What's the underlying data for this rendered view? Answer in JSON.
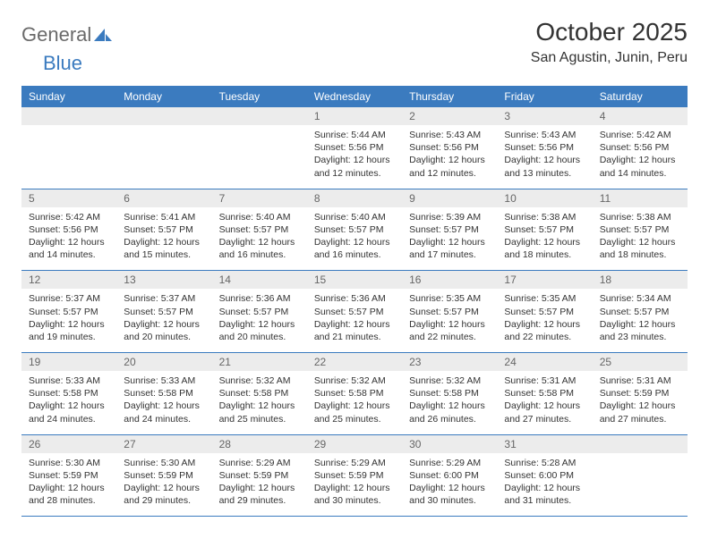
{
  "brand": {
    "word1": "General",
    "word2": "Blue"
  },
  "header": {
    "title": "October 2025",
    "location": "San Agustin, Junin, Peru"
  },
  "colors": {
    "accent": "#3b7bbf",
    "daybar": "#ececec",
    "text": "#333333"
  },
  "weekdays": [
    "Sunday",
    "Monday",
    "Tuesday",
    "Wednesday",
    "Thursday",
    "Friday",
    "Saturday"
  ],
  "weeks": [
    [
      null,
      null,
      null,
      {
        "n": "1",
        "sr": "5:44 AM",
        "ss": "5:56 PM",
        "dl": "12 hours and 12 minutes."
      },
      {
        "n": "2",
        "sr": "5:43 AM",
        "ss": "5:56 PM",
        "dl": "12 hours and 12 minutes."
      },
      {
        "n": "3",
        "sr": "5:43 AM",
        "ss": "5:56 PM",
        "dl": "12 hours and 13 minutes."
      },
      {
        "n": "4",
        "sr": "5:42 AM",
        "ss": "5:56 PM",
        "dl": "12 hours and 14 minutes."
      }
    ],
    [
      {
        "n": "5",
        "sr": "5:42 AM",
        "ss": "5:56 PM",
        "dl": "12 hours and 14 minutes."
      },
      {
        "n": "6",
        "sr": "5:41 AM",
        "ss": "5:57 PM",
        "dl": "12 hours and 15 minutes."
      },
      {
        "n": "7",
        "sr": "5:40 AM",
        "ss": "5:57 PM",
        "dl": "12 hours and 16 minutes."
      },
      {
        "n": "8",
        "sr": "5:40 AM",
        "ss": "5:57 PM",
        "dl": "12 hours and 16 minutes."
      },
      {
        "n": "9",
        "sr": "5:39 AM",
        "ss": "5:57 PM",
        "dl": "12 hours and 17 minutes."
      },
      {
        "n": "10",
        "sr": "5:38 AM",
        "ss": "5:57 PM",
        "dl": "12 hours and 18 minutes."
      },
      {
        "n": "11",
        "sr": "5:38 AM",
        "ss": "5:57 PM",
        "dl": "12 hours and 18 minutes."
      }
    ],
    [
      {
        "n": "12",
        "sr": "5:37 AM",
        "ss": "5:57 PM",
        "dl": "12 hours and 19 minutes."
      },
      {
        "n": "13",
        "sr": "5:37 AM",
        "ss": "5:57 PM",
        "dl": "12 hours and 20 minutes."
      },
      {
        "n": "14",
        "sr": "5:36 AM",
        "ss": "5:57 PM",
        "dl": "12 hours and 20 minutes."
      },
      {
        "n": "15",
        "sr": "5:36 AM",
        "ss": "5:57 PM",
        "dl": "12 hours and 21 minutes."
      },
      {
        "n": "16",
        "sr": "5:35 AM",
        "ss": "5:57 PM",
        "dl": "12 hours and 22 minutes."
      },
      {
        "n": "17",
        "sr": "5:35 AM",
        "ss": "5:57 PM",
        "dl": "12 hours and 22 minutes."
      },
      {
        "n": "18",
        "sr": "5:34 AM",
        "ss": "5:57 PM",
        "dl": "12 hours and 23 minutes."
      }
    ],
    [
      {
        "n": "19",
        "sr": "5:33 AM",
        "ss": "5:58 PM",
        "dl": "12 hours and 24 minutes."
      },
      {
        "n": "20",
        "sr": "5:33 AM",
        "ss": "5:58 PM",
        "dl": "12 hours and 24 minutes."
      },
      {
        "n": "21",
        "sr": "5:32 AM",
        "ss": "5:58 PM",
        "dl": "12 hours and 25 minutes."
      },
      {
        "n": "22",
        "sr": "5:32 AM",
        "ss": "5:58 PM",
        "dl": "12 hours and 25 minutes."
      },
      {
        "n": "23",
        "sr": "5:32 AM",
        "ss": "5:58 PM",
        "dl": "12 hours and 26 minutes."
      },
      {
        "n": "24",
        "sr": "5:31 AM",
        "ss": "5:58 PM",
        "dl": "12 hours and 27 minutes."
      },
      {
        "n": "25",
        "sr": "5:31 AM",
        "ss": "5:59 PM",
        "dl": "12 hours and 27 minutes."
      }
    ],
    [
      {
        "n": "26",
        "sr": "5:30 AM",
        "ss": "5:59 PM",
        "dl": "12 hours and 28 minutes."
      },
      {
        "n": "27",
        "sr": "5:30 AM",
        "ss": "5:59 PM",
        "dl": "12 hours and 29 minutes."
      },
      {
        "n": "28",
        "sr": "5:29 AM",
        "ss": "5:59 PM",
        "dl": "12 hours and 29 minutes."
      },
      {
        "n": "29",
        "sr": "5:29 AM",
        "ss": "5:59 PM",
        "dl": "12 hours and 30 minutes."
      },
      {
        "n": "30",
        "sr": "5:29 AM",
        "ss": "6:00 PM",
        "dl": "12 hours and 30 minutes."
      },
      {
        "n": "31",
        "sr": "5:28 AM",
        "ss": "6:00 PM",
        "dl": "12 hours and 31 minutes."
      },
      null
    ]
  ],
  "labels": {
    "sunrise": "Sunrise: ",
    "sunset": "Sunset: ",
    "daylight": "Daylight: "
  }
}
